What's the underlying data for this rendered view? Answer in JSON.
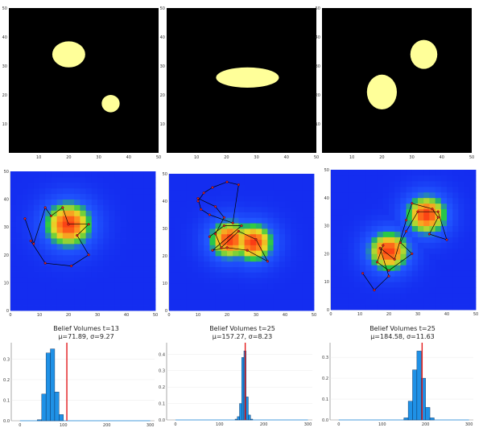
{
  "chart_data": [
    {
      "type": "heatmap",
      "panel": "binary-map",
      "xlim": [
        0,
        50
      ],
      "ylim": [
        0,
        50
      ],
      "xticks": [
        "10",
        "20",
        "30",
        "40",
        "50"
      ],
      "yticks": [
        "10",
        "20",
        "30",
        "40",
        "50"
      ],
      "colors": {
        "background": "#000000",
        "region": "#ffff99"
      },
      "regions": [
        {
          "shape": "blob",
          "cx": 20,
          "cy": 34,
          "rx": 5.5,
          "ry": 4.5
        },
        {
          "shape": "blob",
          "cx": 34,
          "cy": 17,
          "rx": 3,
          "ry": 3
        }
      ]
    },
    {
      "type": "heatmap",
      "panel": "binary-map",
      "xlim": [
        0,
        50
      ],
      "ylim": [
        0,
        50
      ],
      "xticks": [
        "10",
        "20",
        "30",
        "40",
        "50"
      ],
      "yticks": [
        "10",
        "20",
        "30",
        "40",
        "50"
      ],
      "colors": {
        "background": "#000000",
        "region": "#ffff99"
      },
      "regions": [
        {
          "shape": "blob",
          "cx": 27,
          "cy": 26,
          "rx": 10.5,
          "ry": 3.5
        }
      ]
    },
    {
      "type": "heatmap",
      "panel": "binary-map",
      "xlim": [
        0,
        50
      ],
      "ylim": [
        0,
        50
      ],
      "xticks": [
        "10",
        "20",
        "30",
        "40",
        "50"
      ],
      "yticks": [
        "10",
        "20",
        "30",
        "40",
        "50"
      ],
      "colors": {
        "background": "#000000",
        "region": "#ffff99"
      },
      "regions": [
        {
          "shape": "blob",
          "cx": 20,
          "cy": 21,
          "rx": 5,
          "ry": 6
        },
        {
          "shape": "blob",
          "cx": 34,
          "cy": 34,
          "rx": 4.5,
          "ry": 5
        }
      ]
    },
    {
      "type": "heatmap",
      "panel": "belief-map",
      "xlim": [
        0,
        50
      ],
      "ylim": [
        0,
        50
      ],
      "xticks": [
        "0",
        "10",
        "20",
        "30",
        "40",
        "50"
      ],
      "yticks": [
        "0",
        "10",
        "20",
        "30",
        "40",
        "50"
      ],
      "colors": {
        "low": "#1a3cff",
        "mid": "#22cc33",
        "high": "#ff3b1a",
        "path": "#000000",
        "marker": "#d81e1e"
      },
      "peaks": [
        {
          "x": 20,
          "y": 31,
          "sigma": 7
        }
      ],
      "path": [
        [
          5,
          33
        ],
        [
          8,
          24
        ],
        [
          12,
          37
        ],
        [
          14,
          34
        ],
        [
          18,
          37
        ],
        [
          20,
          31
        ],
        [
          27,
          31
        ],
        [
          23,
          27
        ],
        [
          27,
          20
        ],
        [
          21,
          16
        ],
        [
          12,
          17
        ],
        [
          7,
          25
        ]
      ]
    },
    {
      "type": "heatmap",
      "panel": "belief-map",
      "xlim": [
        0,
        50
      ],
      "ylim": [
        0,
        50
      ],
      "xticks": [
        "0",
        "10",
        "20",
        "30",
        "40",
        "50"
      ],
      "yticks": [
        "0",
        "10",
        "20",
        "30",
        "40",
        "50"
      ],
      "colors": {
        "low": "#1a3cff",
        "mid": "#22cc33",
        "high": "#ff3b1a",
        "path": "#000000",
        "marker": "#d81e1e"
      },
      "peaks": [
        {
          "x": 21,
          "y": 26,
          "sigma": 6
        },
        {
          "x": 29,
          "y": 25,
          "sigma": 6
        }
      ],
      "path": [
        [
          10,
          40
        ],
        [
          12,
          43
        ],
        [
          15,
          45
        ],
        [
          20,
          47
        ],
        [
          24,
          46
        ],
        [
          22,
          32
        ],
        [
          14,
          35
        ],
        [
          11,
          37
        ],
        [
          10,
          41
        ],
        [
          16,
          38
        ],
        [
          19,
          34
        ],
        [
          16,
          28
        ],
        [
          18,
          23
        ],
        [
          24,
          29
        ],
        [
          30,
          26
        ],
        [
          34,
          18
        ],
        [
          27,
          22
        ],
        [
          20,
          23
        ],
        [
          15,
          22
        ],
        [
          25,
          31
        ],
        [
          19,
          31
        ],
        [
          14,
          27
        ]
      ]
    },
    {
      "type": "heatmap",
      "panel": "belief-map",
      "xlim": [
        0,
        50
      ],
      "ylim": [
        0,
        50
      ],
      "xticks": [
        "0",
        "10",
        "20",
        "30",
        "40",
        "50"
      ],
      "yticks": [
        "0",
        "10",
        "20",
        "30",
        "40",
        "50"
      ],
      "colors": {
        "low": "#1a3cff",
        "mid": "#22cc33",
        "high": "#ff3b1a",
        "path": "#000000",
        "marker": "#d81e1e"
      },
      "peaks": [
        {
          "x": 20,
          "y": 21,
          "sigma": 6
        },
        {
          "x": 33,
          "y": 34,
          "sigma": 6
        }
      ],
      "path": [
        [
          11,
          13
        ],
        [
          15,
          7
        ],
        [
          20,
          12
        ],
        [
          17,
          22
        ],
        [
          22,
          18
        ],
        [
          26,
          32
        ],
        [
          28,
          38
        ],
        [
          35,
          36
        ],
        [
          37,
          33
        ],
        [
          34,
          27
        ],
        [
          40,
          25
        ],
        [
          37,
          35
        ],
        [
          30,
          35
        ],
        [
          26,
          28
        ],
        [
          24,
          24
        ],
        [
          28,
          20
        ],
        [
          20,
          14
        ],
        [
          16,
          17
        ],
        [
          18,
          23
        ]
      ]
    },
    {
      "type": "bar",
      "panel": "histogram",
      "title": "Belief Volumes t=13",
      "subtitle": "μ=71.89, σ=9.27",
      "xlim": [
        -20,
        310
      ],
      "ylim": [
        0,
        0.38
      ],
      "xticks": [
        "0",
        "100",
        "200",
        "300"
      ],
      "yticks": [
        "0.0",
        "0.1",
        "0.2",
        "0.3"
      ],
      "bin_width": 10,
      "bins": [
        40,
        50,
        60,
        70,
        80,
        90
      ],
      "values": [
        0.005,
        0.13,
        0.33,
        0.35,
        0.14,
        0.03
      ],
      "marker_x": 108,
      "colors": {
        "bar": "#1f91e6",
        "edge": "#0a2a55",
        "marker": "#e31a1c",
        "baseline": "#1f91e6"
      }
    },
    {
      "type": "bar",
      "panel": "histogram",
      "title": "Belief Volumes t=25",
      "subtitle": "μ=157.27, σ=8.23",
      "xlim": [
        -20,
        310
      ],
      "ylim": [
        0,
        0.47
      ],
      "xticks": [
        "0",
        "100",
        "200",
        "300"
      ],
      "yticks": [
        "0.0",
        "0.1",
        "0.2",
        "0.3",
        "0.4"
      ],
      "bin_width": 5,
      "bins": [
        135,
        140,
        145,
        150,
        155,
        160,
        165,
        170
      ],
      "values": [
        0.005,
        0.02,
        0.1,
        0.38,
        0.42,
        0.14,
        0.03,
        0.005
      ],
      "marker_x": 158,
      "colors": {
        "bar": "#1f91e6",
        "edge": "#0a2a55",
        "marker": "#e31a1c",
        "baseline": "#1f91e6"
      }
    },
    {
      "type": "bar",
      "panel": "histogram",
      "title": "Belief Volumes t=25",
      "subtitle": "μ=184.58, σ=11.63",
      "xlim": [
        -20,
        310
      ],
      "ylim": [
        0,
        0.37
      ],
      "xticks": [
        "0",
        "100",
        "200",
        "300"
      ],
      "yticks": [
        "0.0",
        "0.1",
        "0.2",
        "0.3"
      ],
      "bin_width": 10,
      "bins": [
        150,
        160,
        170,
        180,
        190,
        200,
        210
      ],
      "values": [
        0.01,
        0.09,
        0.24,
        0.33,
        0.2,
        0.06,
        0.01
      ],
      "marker_x": 192,
      "colors": {
        "bar": "#1f91e6",
        "edge": "#0a2a55",
        "marker": "#e31a1c",
        "baseline": "#1f91e6"
      }
    }
  ]
}
